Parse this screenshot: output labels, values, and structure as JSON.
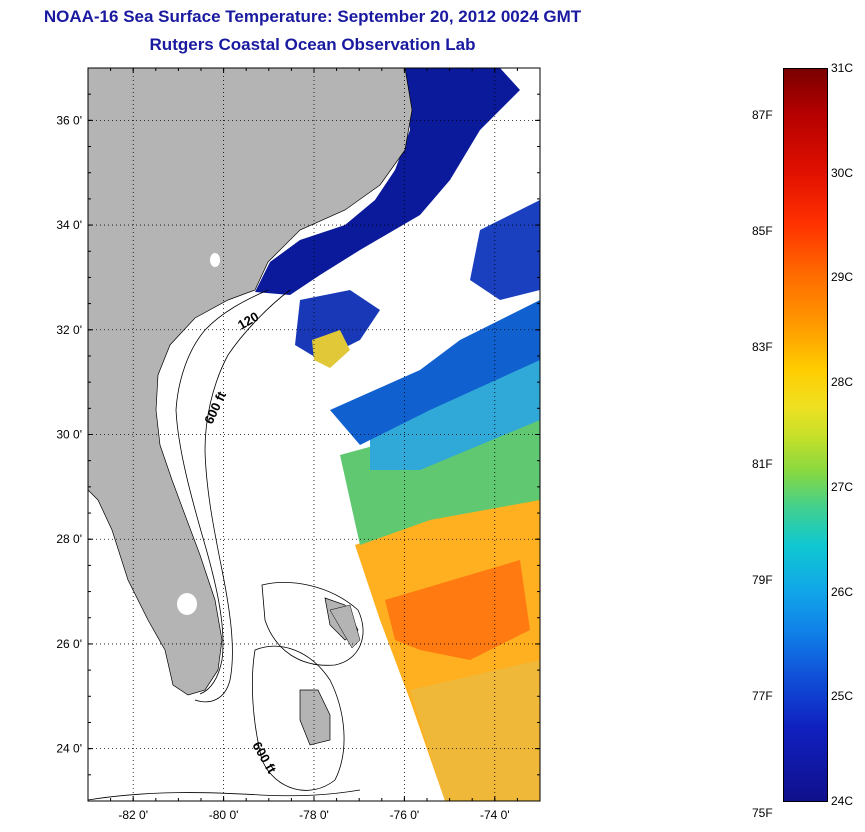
{
  "title": {
    "line1": "NOAA-16 Sea Surface Temperature:  September 20, 2012 0024 GMT",
    "line2": "Rutgers Coastal Ocean Observation Lab"
  },
  "map": {
    "lat_ticks": [
      {
        "value": 36,
        "label": "36 0'"
      },
      {
        "value": 34,
        "label": "34 0'"
      },
      {
        "value": 32,
        "label": "32 0'"
      },
      {
        "value": 30,
        "label": "30 0'"
      },
      {
        "value": 28,
        "label": "28 0'"
      },
      {
        "value": 26,
        "label": "26 0'"
      },
      {
        "value": 24,
        "label": "24 0'"
      }
    ],
    "lon_ticks": [
      {
        "value": -82,
        "label": "-82 0'"
      },
      {
        "value": -80,
        "label": "-80 0'"
      },
      {
        "value": -78,
        "label": "-78 0'"
      },
      {
        "value": -76,
        "label": "-76 0'"
      },
      {
        "value": -74,
        "label": "-74 0'"
      }
    ],
    "lat_range": [
      23,
      37
    ],
    "lon_range": [
      -83,
      -73
    ],
    "grid": "dotted",
    "land_color": "#b4b4b4",
    "isobath_labels": [
      "120",
      "600 ft",
      "600 ft"
    ]
  },
  "colorbar": {
    "celsius_labels": [
      "31C",
      "30C",
      "29C",
      "28C",
      "27C",
      "26C",
      "25C",
      "24C"
    ],
    "fahrenheit_labels": [
      "87F",
      "85F",
      "83F",
      "81F",
      "79F",
      "77F",
      "75F"
    ],
    "range_celsius": [
      24,
      31
    ],
    "colors": {
      "hot": "#7a0000",
      "warm": "#ff9a00",
      "mid": "#c8e028",
      "cool": "#10a8e8",
      "cold": "#10108c"
    }
  }
}
